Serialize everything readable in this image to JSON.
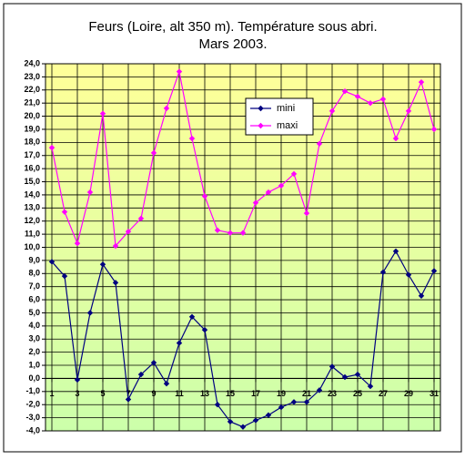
{
  "chart_data": {
    "type": "line",
    "title": "Feurs (Loire, alt 350 m). Température sous abri.",
    "subtitle": "Mars 2003.",
    "x": [
      1,
      2,
      3,
      4,
      5,
      6,
      7,
      8,
      9,
      10,
      11,
      12,
      13,
      14,
      15,
      16,
      17,
      18,
      19,
      20,
      21,
      22,
      23,
      24,
      25,
      26,
      27,
      28,
      29,
      30,
      31
    ],
    "xlim": [
      0.5,
      31.5
    ],
    "xticks": [
      1,
      3,
      5,
      7,
      9,
      11,
      13,
      15,
      17,
      19,
      21,
      23,
      25,
      27,
      29,
      31
    ],
    "ylim": [
      -4,
      24
    ],
    "yticks": [
      {
        "value": 24,
        "label": "24,0"
      },
      {
        "value": 23,
        "label": "23,0"
      },
      {
        "value": 22,
        "label": "22,0"
      },
      {
        "value": 21,
        "label": "21,0"
      },
      {
        "value": 20,
        "label": "20,0"
      },
      {
        "value": 19,
        "label": "19,0"
      },
      {
        "value": 18,
        "label": "18,0"
      },
      {
        "value": 17,
        "label": "17,0"
      },
      {
        "value": 16,
        "label": "16,0"
      },
      {
        "value": 15,
        "label": "15,0"
      },
      {
        "value": 14,
        "label": "14,0"
      },
      {
        "value": 13,
        "label": "13,0"
      },
      {
        "value": 12,
        "label": "12,0"
      },
      {
        "value": 11,
        "label": "11,0"
      },
      {
        "value": 10,
        "label": "10,0"
      },
      {
        "value": 9,
        "label": "9,0"
      },
      {
        "value": 8,
        "label": "8,0"
      },
      {
        "value": 7,
        "label": "7,0"
      },
      {
        "value": 6,
        "label": "6,0"
      },
      {
        "value": 5,
        "label": "5,0"
      },
      {
        "value": 4,
        "label": "4,0"
      },
      {
        "value": 3,
        "label": "3,0"
      },
      {
        "value": 2,
        "label": "2,0"
      },
      {
        "value": 1,
        "label": "1,0"
      },
      {
        "value": 0,
        "label": "0,0"
      },
      {
        "value": -1,
        "label": "-1,0"
      },
      {
        "value": -2,
        "label": "-2,0"
      },
      {
        "value": -3,
        "label": "-3,0"
      },
      {
        "value": -4,
        "label": "-4,0"
      }
    ],
    "grid": true,
    "legend": "top-right",
    "series": [
      {
        "name": "mini",
        "color": "#000080",
        "values": [
          8.9,
          7.8,
          -0.1,
          5.0,
          8.7,
          7.3,
          -1.6,
          0.3,
          1.2,
          -0.4,
          2.7,
          4.7,
          3.7,
          -2.0,
          -3.3,
          -3.7,
          -3.2,
          -2.8,
          -2.2,
          -1.8,
          -1.8,
          -0.9,
          0.9,
          0.1,
          0.3,
          -0.6,
          8.1,
          9.7,
          7.9,
          6.3,
          8.2
        ]
      },
      {
        "name": "maxi",
        "color": "#ff00ff",
        "values": [
          17.6,
          12.7,
          10.3,
          14.2,
          20.2,
          10.1,
          11.2,
          12.2,
          17.2,
          20.6,
          23.4,
          18.3,
          13.9,
          11.3,
          11.1,
          11.1,
          13.4,
          14.2,
          14.7,
          15.6,
          12.6,
          17.9,
          20.4,
          21.9,
          21.5,
          21.0,
          21.3,
          18.3,
          20.4,
          22.6,
          19.0
        ]
      }
    ]
  }
}
